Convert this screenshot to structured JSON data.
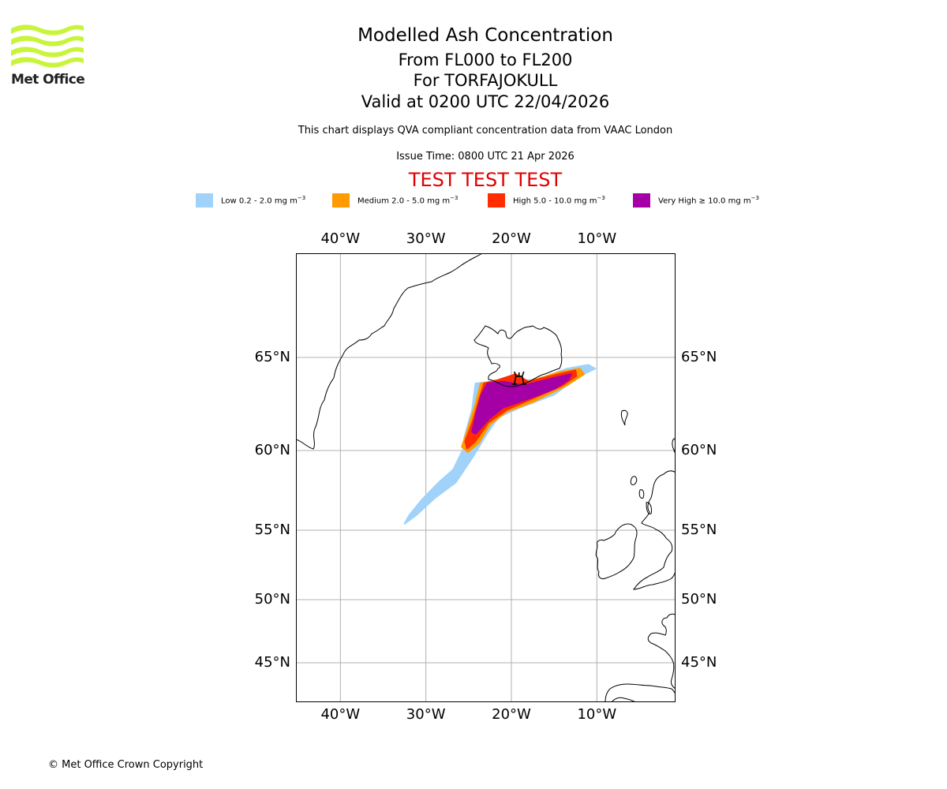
{
  "branding": {
    "logo_text": "Met Office",
    "logo_color": "#c8f53c",
    "logo_icon": "met-office-waves-icon"
  },
  "header": {
    "title": "Modelled Ash Concentration",
    "levels": "From FL000 to FL200",
    "volcano": "For TORFAJOKULL",
    "valid": "Valid at 0200 UTC 22/04/2026",
    "description": "This chart displays QVA compliant concentration data from VAAC London",
    "issue_time": "Issue Time: 0800 UTC 21 Apr 2026",
    "test_banner": "TEST TEST TEST",
    "test_banner_color": "#e00000"
  },
  "legend": [
    {
      "label": "Low 0.2 - 2.0 mg m",
      "exp": "−3",
      "color": "#a0d2fa"
    },
    {
      "label": "Medium 2.0 - 5.0 mg m",
      "exp": "−3",
      "color": "#ff9a00"
    },
    {
      "label": "High 5.0 - 10.0 mg m",
      "exp": "−3",
      "color": "#ff2d00"
    },
    {
      "label": "Very High  ≥  10.0 mg m",
      "exp": "−3",
      "color": "#a500a5"
    }
  ],
  "footer": {
    "copyright": "© Met Office Crown Copyright"
  },
  "chart_data": {
    "type": "map",
    "title": "Modelled Ash Concentration",
    "subtitle": "From FL000 to FL200 — For TORFAJOKULL — Valid at 0200 UTC 22/04/2026",
    "projection": "equirectangular-like",
    "lon_range": [
      -45.2,
      -0.8
    ],
    "lat_range": [
      43,
      70
    ],
    "x_ticks": [
      "40°W",
      "30°W",
      "20°W",
      "10°W"
    ],
    "x_tick_values": [
      -40,
      -30,
      -20,
      -10
    ],
    "y_ticks": [
      "65°N",
      "60°N",
      "55°N",
      "50°N",
      "45°N"
    ],
    "y_tick_values": [
      65,
      60,
      55,
      50,
      45
    ],
    "grid": true,
    "volcano": {
      "name": "TORFAJOKULL",
      "lon": -19.1,
      "lat": 63.9,
      "icon": "volcano-icon"
    },
    "ash_levels": [
      {
        "name": "Low",
        "range_mg_m3": [
          0.2,
          2.0
        ],
        "color": "#a0d2fa"
      },
      {
        "name": "Medium",
        "range_mg_m3": [
          2.0,
          5.0
        ],
        "color": "#ff9a00"
      },
      {
        "name": "High",
        "range_mg_m3": [
          5.0,
          10.0
        ],
        "color": "#ff2d00"
      },
      {
        "name": "Very High",
        "range_mg_m3": [
          10.0,
          null
        ],
        "color": "#a500a5"
      }
    ],
    "plume_extent": {
      "low": [
        [
          -24.2,
          63.6
        ],
        [
          -22.5,
          63.7
        ],
        [
          -17,
          63.8
        ],
        [
          -13.5,
          64.4
        ],
        [
          -11,
          64.6
        ],
        [
          -10.2,
          64.4
        ],
        [
          -12,
          64.0
        ],
        [
          -15,
          63.0
        ],
        [
          -19,
          62.3
        ],
        [
          -21.5,
          61.8
        ],
        [
          -23,
          60.8
        ],
        [
          -24.5,
          59.6
        ],
        [
          -26.5,
          58.0
        ],
        [
          -29,
          57.0
        ],
        [
          -31,
          56.0
        ],
        [
          -32.5,
          55.4
        ],
        [
          -32.0,
          55.9
        ],
        [
          -30.5,
          56.9
        ],
        [
          -28.5,
          58.0
        ],
        [
          -26.8,
          58.8
        ],
        [
          -25.6,
          60.1
        ],
        [
          -25.5,
          60.7
        ],
        [
          -24.6,
          62.2
        ]
      ],
      "medium": [
        [
          -23.6,
          63.6
        ],
        [
          -22,
          63.7
        ],
        [
          -18,
          63.7
        ],
        [
          -14.5,
          64.2
        ],
        [
          -12,
          64.4
        ],
        [
          -11.5,
          64.1
        ],
        [
          -13.5,
          63.5
        ],
        [
          -17.5,
          62.6
        ],
        [
          -20.5,
          62.1
        ],
        [
          -22.5,
          61.4
        ],
        [
          -23.8,
          60.4
        ],
        [
          -25.1,
          59.9
        ],
        [
          -25.8,
          60.2
        ],
        [
          -25,
          61.3
        ],
        [
          -24.2,
          62.5
        ]
      ],
      "high": [
        [
          -23.2,
          63.6
        ],
        [
          -21.5,
          63.8
        ],
        [
          -19.5,
          64.1
        ],
        [
          -18,
          63.7
        ],
        [
          -14.5,
          64.1
        ],
        [
          -12.5,
          64.3
        ],
        [
          -12.4,
          64.0
        ],
        [
          -14,
          63.5
        ],
        [
          -18,
          62.7
        ],
        [
          -20.5,
          62.2
        ],
        [
          -22.7,
          61.5
        ],
        [
          -24.2,
          60.5
        ],
        [
          -25.2,
          60.1
        ],
        [
          -25.4,
          60.5
        ],
        [
          -24.5,
          61.6
        ],
        [
          -23.8,
          62.7
        ]
      ],
      "very_high": [
        [
          -22.8,
          63.6
        ],
        [
          -21,
          63.7
        ],
        [
          -18.5,
          63.5
        ],
        [
          -15,
          63.9
        ],
        [
          -13,
          64.1
        ],
        [
          -13.3,
          63.8
        ],
        [
          -15,
          63.3
        ],
        [
          -18.5,
          62.7
        ],
        [
          -21,
          62.3
        ],
        [
          -22.6,
          61.7
        ],
        [
          -24.2,
          60.9
        ],
        [
          -24.6,
          61.0
        ],
        [
          -24.1,
          62.0
        ],
        [
          -23.5,
          63.0
        ]
      ]
    }
  }
}
